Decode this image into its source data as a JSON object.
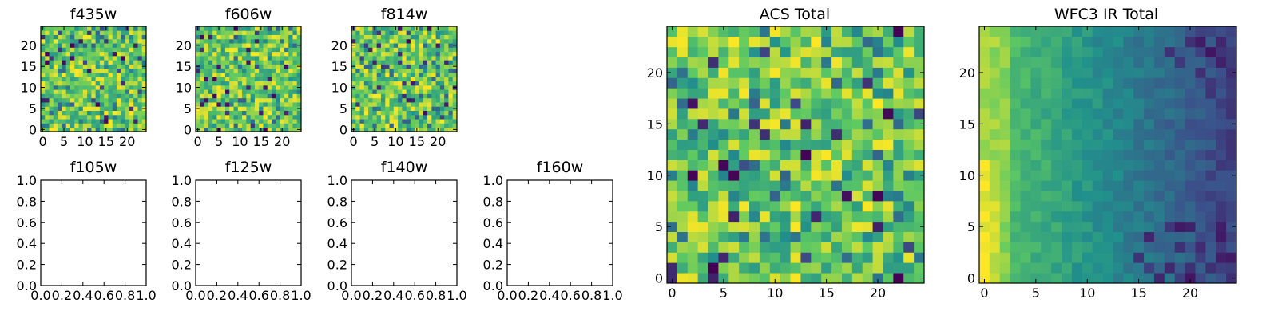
{
  "chart_data": [
    {
      "id": "f435w",
      "title": "f435w",
      "type": "heatmap",
      "grid_size": 25,
      "pattern": "noise",
      "colormap": "viridis",
      "xticks": [
        "0",
        "5",
        "10",
        "15",
        "20"
      ],
      "xtick_values": [
        0,
        5,
        10,
        15,
        20
      ],
      "yticks": [
        "0",
        "5",
        "10",
        "15",
        "20"
      ],
      "ytick_values": [
        0,
        5,
        10,
        15,
        20
      ],
      "xlim": [
        -0.5,
        24.5
      ],
      "ylim": [
        -0.5,
        24.5
      ]
    },
    {
      "id": "f606w",
      "title": "f606w",
      "type": "heatmap",
      "grid_size": 25,
      "pattern": "noise",
      "colormap": "viridis",
      "xticks": [
        "0",
        "5",
        "10",
        "15",
        "20"
      ],
      "xtick_values": [
        0,
        5,
        10,
        15,
        20
      ],
      "yticks": [
        "0",
        "5",
        "10",
        "15",
        "20"
      ],
      "ytick_values": [
        0,
        5,
        10,
        15,
        20
      ],
      "xlim": [
        -0.5,
        24.5
      ],
      "ylim": [
        -0.5,
        24.5
      ]
    },
    {
      "id": "f814w",
      "title": "f814w",
      "type": "heatmap",
      "grid_size": 25,
      "pattern": "noise",
      "colormap": "viridis",
      "xticks": [
        "0",
        "5",
        "10",
        "15",
        "20"
      ],
      "xtick_values": [
        0,
        5,
        10,
        15,
        20
      ],
      "yticks": [
        "0",
        "5",
        "10",
        "15",
        "20"
      ],
      "ytick_values": [
        0,
        5,
        10,
        15,
        20
      ],
      "xlim": [
        -0.5,
        24.5
      ],
      "ylim": [
        -0.5,
        24.5
      ]
    },
    {
      "id": "f105w",
      "title": "f105w",
      "type": "empty",
      "xticks": [
        "0.0",
        "0.2",
        "0.4",
        "0.6",
        "0.8",
        "1.0"
      ],
      "xtick_values": [
        0,
        0.2,
        0.4,
        0.6,
        0.8,
        1.0
      ],
      "yticks": [
        "0.0",
        "0.2",
        "0.4",
        "0.6",
        "0.8",
        "1.0"
      ],
      "ytick_values": [
        0,
        0.2,
        0.4,
        0.6,
        0.8,
        1.0
      ],
      "xlim": [
        0,
        1
      ],
      "ylim": [
        0,
        1
      ]
    },
    {
      "id": "f125w",
      "title": "f125w",
      "type": "empty",
      "xticks": [
        "0.0",
        "0.2",
        "0.4",
        "0.6",
        "0.8",
        "1.0"
      ],
      "xtick_values": [
        0,
        0.2,
        0.4,
        0.6,
        0.8,
        1.0
      ],
      "yticks": [
        "0.0",
        "0.2",
        "0.4",
        "0.6",
        "0.8",
        "1.0"
      ],
      "ytick_values": [
        0,
        0.2,
        0.4,
        0.6,
        0.8,
        1.0
      ],
      "xlim": [
        0,
        1
      ],
      "ylim": [
        0,
        1
      ]
    },
    {
      "id": "f140w",
      "title": "f140w",
      "type": "empty",
      "xticks": [
        "0.0",
        "0.2",
        "0.4",
        "0.6",
        "0.8",
        "1.0"
      ],
      "xtick_values": [
        0,
        0.2,
        0.4,
        0.6,
        0.8,
        1.0
      ],
      "yticks": [
        "0.0",
        "0.2",
        "0.4",
        "0.6",
        "0.8",
        "1.0"
      ],
      "ytick_values": [
        0,
        0.2,
        0.4,
        0.6,
        0.8,
        1.0
      ],
      "xlim": [
        0,
        1
      ],
      "ylim": [
        0,
        1
      ]
    },
    {
      "id": "f160w",
      "title": "f160w",
      "type": "empty",
      "xticks": [
        "0.0",
        "0.2",
        "0.4",
        "0.6",
        "0.8",
        "1.0"
      ],
      "xtick_values": [
        0,
        0.2,
        0.4,
        0.6,
        0.8,
        1.0
      ],
      "yticks": [
        "0.0",
        "0.2",
        "0.4",
        "0.6",
        "0.8",
        "1.0"
      ],
      "ytick_values": [
        0,
        0.2,
        0.4,
        0.6,
        0.8,
        1.0
      ],
      "xlim": [
        0,
        1
      ],
      "ylim": [
        0,
        1
      ]
    },
    {
      "id": "acs-total",
      "title": "ACS Total",
      "type": "heatmap",
      "grid_size": 25,
      "pattern": "noise",
      "colormap": "viridis",
      "xticks": [
        "0",
        "5",
        "10",
        "15",
        "20"
      ],
      "xtick_values": [
        0,
        5,
        10,
        15,
        20
      ],
      "yticks": [
        "0",
        "5",
        "10",
        "15",
        "20"
      ],
      "ytick_values": [
        0,
        5,
        10,
        15,
        20
      ],
      "xlim": [
        -0.5,
        24.5
      ],
      "ylim": [
        -0.5,
        24.5
      ]
    },
    {
      "id": "wfc3-ir-total",
      "title": "WFC3 IR Total",
      "type": "heatmap",
      "grid_size": 25,
      "pattern": "gradient",
      "colormap": "viridis",
      "xticks": [
        "0",
        "5",
        "10",
        "15",
        "20"
      ],
      "xtick_values": [
        0,
        5,
        10,
        15,
        20
      ],
      "yticks": [
        "0",
        "5",
        "10",
        "15",
        "20"
      ],
      "ytick_values": [
        0,
        5,
        10,
        15,
        20
      ],
      "xlim": [
        -0.5,
        24.5
      ],
      "ylim": [
        -0.5,
        24.5
      ]
    }
  ],
  "colors": {
    "viridis": [
      "#440154",
      "#3b528b",
      "#21918c",
      "#5ec962",
      "#fde725"
    ],
    "background": "#ffffff"
  }
}
